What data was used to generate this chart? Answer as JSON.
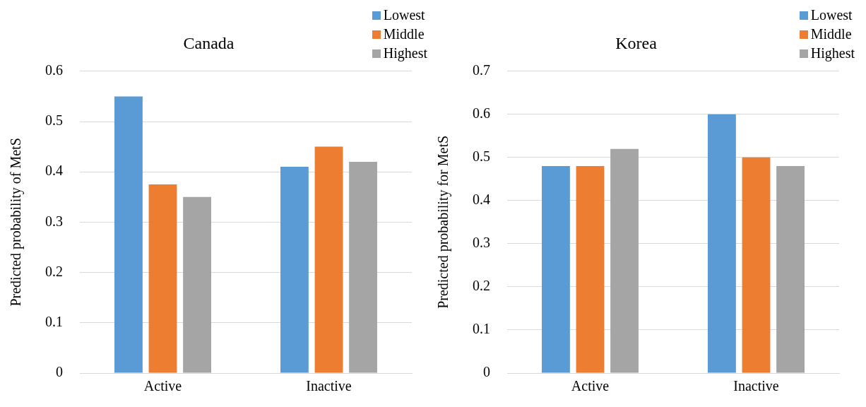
{
  "chart_data": [
    {
      "type": "bar",
      "title": "Canada",
      "ylabel": "Predicted probability of MetS",
      "categories": [
        "Active",
        "Inactive"
      ],
      "series": [
        {
          "name": "Lowest",
          "color": "#5b9bd5",
          "values": [
            0.55,
            0.41
          ]
        },
        {
          "name": "Middle",
          "color": "#ed7d31",
          "values": [
            0.375,
            0.45
          ]
        },
        {
          "name": "Highest",
          "color": "#a5a5a5",
          "values": [
            0.35,
            0.42
          ]
        }
      ],
      "ylim": [
        0,
        0.6
      ],
      "yticks": [
        {
          "value": 0,
          "label": "0"
        },
        0.1,
        0.2,
        0.3,
        0.4,
        0.5,
        0.6
      ],
      "grid": "y",
      "legend": "top right"
    },
    {
      "type": "bar",
      "title": "Korea",
      "ylabel": "Predicted probability for MetS",
      "categories": [
        "Active",
        "Inactive"
      ],
      "series": [
        {
          "name": "Lowest",
          "color": "#5b9bd5",
          "values": [
            0.48,
            0.6
          ]
        },
        {
          "name": "Middle",
          "color": "#ed7d31",
          "values": [
            0.48,
            0.5
          ]
        },
        {
          "name": "Highest",
          "color": "#a5a5a5",
          "values": [
            0.52,
            0.48
          ]
        }
      ],
      "ylim": [
        0,
        0.7
      ],
      "yticks": [
        {
          "value": 0,
          "label": "0"
        },
        0.1,
        0.2,
        0.3,
        0.4,
        0.5,
        0.6,
        0.7
      ],
      "grid": "y",
      "legend": "top right"
    }
  ]
}
